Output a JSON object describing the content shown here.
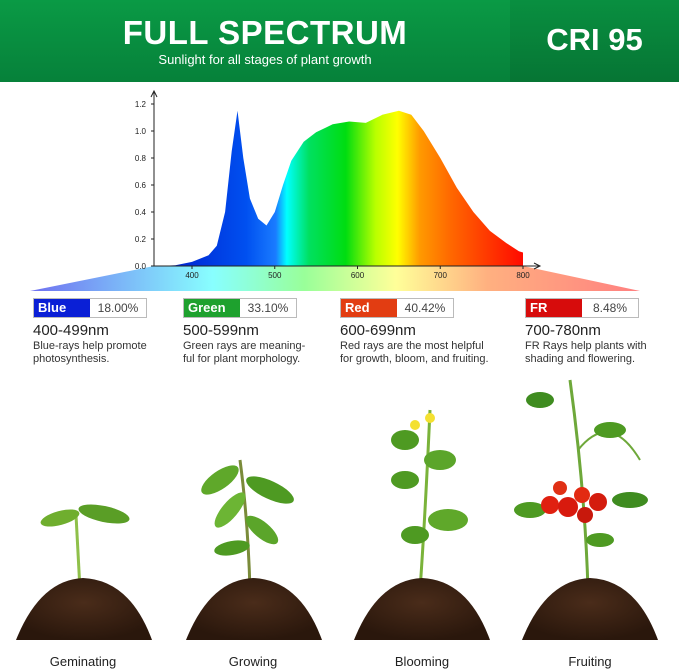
{
  "header": {
    "title": "FULL SPECTRUM",
    "subtitle": "Sunlight for all stages of plant growth",
    "badge": "CRI 95"
  },
  "chart_data": {
    "type": "area",
    "x": [
      360,
      380,
      400,
      420,
      430,
      440,
      448,
      455,
      462,
      470,
      480,
      490,
      500,
      510,
      520,
      535,
      550,
      570,
      590,
      610,
      630,
      650,
      665,
      680,
      700,
      720,
      740,
      760,
      780,
      795,
      800
    ],
    "y": [
      0,
      0.005,
      0.03,
      0.08,
      0.15,
      0.4,
      0.85,
      1.15,
      0.8,
      0.5,
      0.35,
      0.3,
      0.4,
      0.6,
      0.78,
      0.92,
      0.99,
      1.05,
      1.07,
      1.06,
      1.12,
      1.15,
      1.12,
      1.0,
      0.8,
      0.58,
      0.4,
      0.26,
      0.17,
      0.11,
      0.1
    ],
    "xticks": [
      "400",
      "500",
      "600",
      "700",
      "800"
    ],
    "yticks": [
      "0.0",
      "0.2",
      "0.4",
      "0.6",
      "0.8",
      "1.0",
      "1.2"
    ],
    "xlim": [
      354,
      805
    ],
    "ylim": [
      0,
      1.25
    ],
    "grid": false
  },
  "bands": [
    {
      "name": "Blue",
      "percent": "18.00%",
      "range": "400-499nm",
      "desc1": "Blue-rays help promote",
      "desc2": "photosynthesis.",
      "color": "#0a1fd6"
    },
    {
      "name": "Green",
      "percent": "33.10%",
      "range": "500-599nm",
      "desc1": "Green rays are meaning-",
      "desc2": "ful for plant morphology.",
      "color": "#1ea12e"
    },
    {
      "name": "Red",
      "percent": "40.42%",
      "range": "600-699nm",
      "desc1": "Red rays are the most helpful",
      "desc2": "for growth, bloom, and fruiting.",
      "color": "#e23d12"
    },
    {
      "name": "FR",
      "percent": "8.48%",
      "range": "700-780nm",
      "desc1": "FR Rays help plants with",
      "desc2": "shading and flowering.",
      "color": "#d70c0c"
    }
  ],
  "stages": [
    "Geminating",
    "Growing",
    "Blooming",
    "Fruiting"
  ]
}
